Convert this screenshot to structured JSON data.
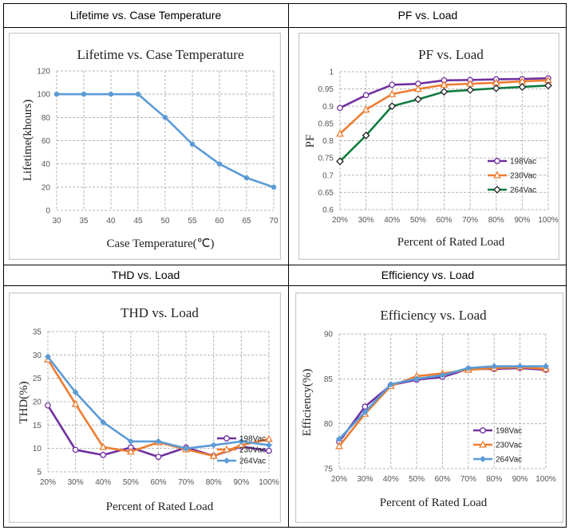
{
  "headers": {
    "lifetime": "Lifetime vs. Case Temperature",
    "pf": "PF vs. Load",
    "thd": "THD vs. Load",
    "efficiency": "Efficiency vs. Load"
  },
  "colors": {
    "lifetime": "#5b9bd5",
    "v198": "#7030a0",
    "v230": "#ed7d31",
    "v264_pf": "#107c41",
    "v264": "#5b9bd5",
    "grid": "#b5b5b5"
  },
  "chart_data": [
    {
      "id": "lifetime",
      "type": "line",
      "title": "Lifetime vs. Case Temperature",
      "xlabel": "Case Temperature(℃)",
      "ylabel": "Lifetime(khours)",
      "categories": [
        "30",
        "35",
        "40",
        "45",
        "50",
        "55",
        "60",
        "65",
        "70"
      ],
      "ylim": [
        0,
        120
      ],
      "yticks": [
        0,
        20,
        40,
        60,
        80,
        100,
        120
      ],
      "series": [
        {
          "name": "Lifetime",
          "values": [
            100,
            100,
            100,
            100,
            80,
            57,
            40,
            28,
            20
          ]
        }
      ]
    },
    {
      "id": "pf",
      "type": "line",
      "title": "PF vs. Load",
      "xlabel": "Percent of Rated Load",
      "ylabel": "PF",
      "categories": [
        "20%",
        "30%",
        "40%",
        "50%",
        "60%",
        "70%",
        "80%",
        "90%",
        "100%"
      ],
      "ylim": [
        0.6,
        1.0
      ],
      "yticks": [
        "0.6",
        "0.65",
        "0.7",
        "0.75",
        "0.8",
        "0.85",
        "0.9",
        "0.95",
        "1"
      ],
      "series": [
        {
          "name": "198Vac",
          "values": [
            0.895,
            0.932,
            0.962,
            0.965,
            0.975,
            0.976,
            0.978,
            0.979,
            0.981
          ]
        },
        {
          "name": "230Vac",
          "values": [
            0.82,
            0.89,
            0.935,
            0.95,
            0.962,
            0.965,
            0.968,
            0.972,
            0.975
          ]
        },
        {
          "name": "264Vac",
          "values": [
            0.74,
            0.815,
            0.9,
            0.92,
            0.942,
            0.947,
            0.952,
            0.956,
            0.96
          ]
        }
      ]
    },
    {
      "id": "thd",
      "type": "line",
      "title": "THD vs. Load",
      "xlabel": "Percent of Rated Load",
      "ylabel": "THD(%)",
      "categories": [
        "20%",
        "30%",
        "40%",
        "50%",
        "60%",
        "70%",
        "80%",
        "90%",
        "100%"
      ],
      "ylim": [
        5,
        35
      ],
      "yticks": [
        5,
        10,
        15,
        20,
        25,
        30,
        35
      ],
      "series": [
        {
          "name": "198Vac",
          "values": [
            19.2,
            9.7,
            8.6,
            10.2,
            8.2,
            10.2,
            8.4,
            10.4,
            9.5
          ]
        },
        {
          "name": "230Vac",
          "values": [
            29,
            19.5,
            10.3,
            9.3,
            11.3,
            9.8,
            8.4,
            10.7,
            12
          ]
        },
        {
          "name": "264Vac",
          "values": [
            29.6,
            22,
            15.6,
            11.5,
            11.5,
            10,
            10.7,
            11.5,
            10.7
          ]
        }
      ]
    },
    {
      "id": "efficiency",
      "type": "line",
      "title": "Efficiency vs. Load",
      "xlabel": "Percent of Rated Load",
      "ylabel": "Efficiency(%)",
      "categories": [
        "20%",
        "30%",
        "40%",
        "50%",
        "60%",
        "70%",
        "80%",
        "90%",
        "100%"
      ],
      "ylim": [
        75,
        90
      ],
      "yticks": [
        75,
        80,
        85,
        90
      ],
      "series": [
        {
          "name": "198Vac",
          "values": [
            78,
            81.9,
            84.3,
            84.9,
            85.2,
            86.1,
            86.1,
            86.2,
            86
          ]
        },
        {
          "name": "230Vac",
          "values": [
            77.5,
            81.1,
            84.2,
            85.3,
            85.6,
            86,
            86.2,
            86.3,
            86.1
          ]
        },
        {
          "name": "264Vac",
          "values": [
            78.3,
            81.3,
            84.4,
            85,
            85.4,
            86.2,
            86.4,
            86.4,
            86.4
          ]
        }
      ]
    }
  ]
}
